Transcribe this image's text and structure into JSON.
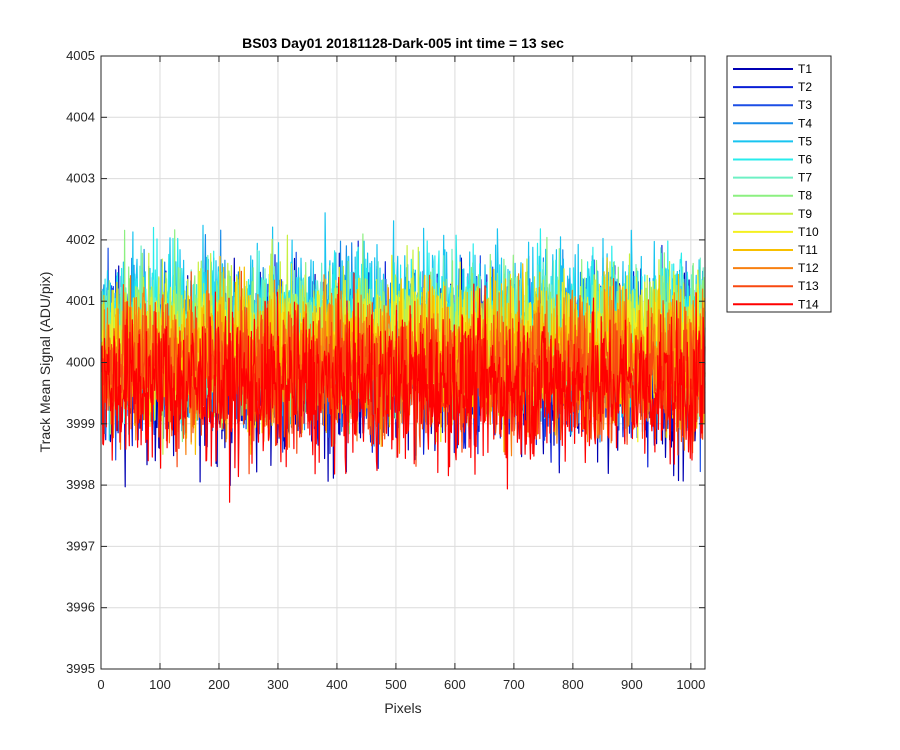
{
  "chart_data": {
    "type": "line",
    "title": "BS03 Day01 20181128-Dark-005 int time = 13 sec",
    "xlabel": "Pixels",
    "ylabel": "Track Mean Signal (ADU/pix)",
    "xlim": [
      0,
      1024
    ],
    "ylim": [
      3995,
      4005
    ],
    "x_ticks": [
      0,
      100,
      200,
      300,
      400,
      500,
      600,
      700,
      800,
      900,
      1000
    ],
    "y_ticks": [
      3995,
      3996,
      3997,
      3998,
      3999,
      4000,
      4001,
      4002,
      4003,
      4004,
      4005
    ],
    "grid": true,
    "legend_position": "outside-top-right",
    "x_range": [
      1,
      1024
    ],
    "series": [
      {
        "name": "T1",
        "color": "#0000b3",
        "mean": 3999.9,
        "spread": 1.35
      },
      {
        "name": "T2",
        "color": "#0a1fd6",
        "mean": 4000.0,
        "spread": 1.25
      },
      {
        "name": "T3",
        "color": "#1c4fe6",
        "mean": 4000.1,
        "spread": 1.15
      },
      {
        "name": "T4",
        "color": "#1a8ce8",
        "mean": 4000.3,
        "spread": 1.15
      },
      {
        "name": "T5",
        "color": "#18c4f0",
        "mean": 4000.6,
        "spread": 1.25
      },
      {
        "name": "T6",
        "color": "#28ecec",
        "mean": 4000.5,
        "spread": 1.15
      },
      {
        "name": "T7",
        "color": "#6ef0c4",
        "mean": 4000.4,
        "spread": 1.1
      },
      {
        "name": "T8",
        "color": "#8cf080",
        "mean": 4000.4,
        "spread": 1.15
      },
      {
        "name": "T9",
        "color": "#c8f040",
        "mean": 4000.3,
        "spread": 1.1
      },
      {
        "name": "T10",
        "color": "#f4f020",
        "mean": 4000.2,
        "spread": 1.05
      },
      {
        "name": "T11",
        "color": "#f8c000",
        "mean": 4000.1,
        "spread": 1.1
      },
      {
        "name": "T12",
        "color": "#f88010",
        "mean": 4000.0,
        "spread": 1.1
      },
      {
        "name": "T13",
        "color": "#f84810",
        "mean": 3999.8,
        "spread": 1.1
      },
      {
        "name": "T14",
        "color": "#ff0000",
        "mean": 3999.6,
        "spread": 1.15
      }
    ]
  }
}
